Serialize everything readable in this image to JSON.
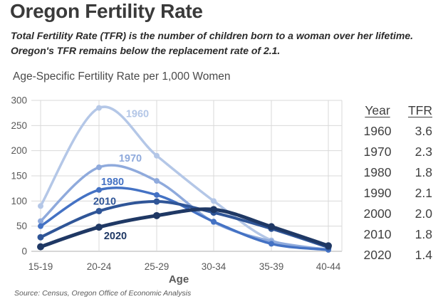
{
  "header": {
    "title": "Oregon Fertility Rate",
    "subtitle_line1": "Total Fertility Rate (TFR) is the number of children born to a woman over her lifetime.",
    "subtitle_line2": "Oregon's TFR remains below the replacement rate of 2.1."
  },
  "chart_data": {
    "type": "line",
    "title": "Age-Specific Fertility Rate per 1,000 Women",
    "xlabel": "Age",
    "ylabel": "",
    "categories": [
      "15-19",
      "20-24",
      "25-29",
      "30-34",
      "35-39",
      "40-44"
    ],
    "series": [
      {
        "name": "1960",
        "color": "#b4c7e7",
        "values": [
          90,
          285,
          190,
          100,
          22,
          4
        ]
      },
      {
        "name": "1970",
        "color": "#8faadc",
        "values": [
          60,
          167,
          140,
          58,
          20,
          3
        ]
      },
      {
        "name": "1980",
        "color": "#4472c4",
        "values": [
          50,
          122,
          112,
          59,
          15,
          3
        ]
      },
      {
        "name": "2010",
        "color": "#2f5597",
        "values": [
          28,
          80,
          99,
          77,
          45,
          8
        ]
      },
      {
        "name": "2020",
        "color": "#1f3864",
        "values": [
          9,
          48,
          71,
          83,
          49,
          11
        ]
      }
    ],
    "ylim": [
      0,
      300
    ],
    "ytick_step": 50,
    "grid": true,
    "legend": "inline-labels-on-lines"
  },
  "table": {
    "headers": [
      "Year",
      "TFR"
    ],
    "rows": [
      [
        "1960",
        "3.6"
      ],
      [
        "1970",
        "2.3"
      ],
      [
        "1980",
        "1.8"
      ],
      [
        "1990",
        "2.1"
      ],
      [
        "2000",
        "2.0"
      ],
      [
        "2010",
        "1.8"
      ],
      [
        "2020",
        "1.4"
      ]
    ]
  },
  "source": {
    "text": "Source: Census, Oregon Office of Economic Analysis"
  },
  "colors": {
    "grid": "#d9d9d9",
    "axis": "#bfbfbf",
    "tick_text": "#595959",
    "title_text": "#3a3a3a"
  }
}
